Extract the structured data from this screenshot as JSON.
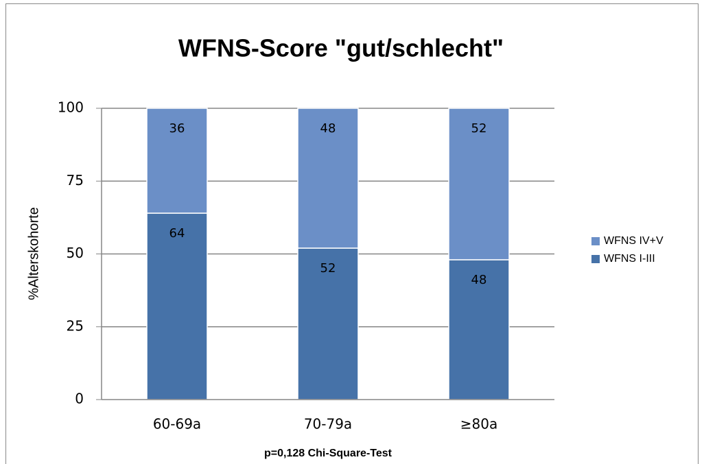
{
  "chart_data": {
    "type": "stacked_bar",
    "title": "WFNS-Score \"gut/schlecht\"",
    "xlabel": "p=0,128  Chi-Square-Test",
    "ylabel": "%Alterskohorte",
    "categories": [
      "60-69a",
      "70-79a",
      "≥80a"
    ],
    "series": [
      {
        "name": "WFNS I-III",
        "color": "#4672a8",
        "values": [
          64,
          52,
          48
        ]
      },
      {
        "name": "WFNS IV+V",
        "color": "#6b8fc7",
        "values": [
          36,
          48,
          52
        ]
      }
    ],
    "ylim": [
      0,
      100
    ],
    "yticks": [
      0,
      25,
      50,
      75,
      100
    ],
    "grid": true,
    "legend": "right"
  }
}
